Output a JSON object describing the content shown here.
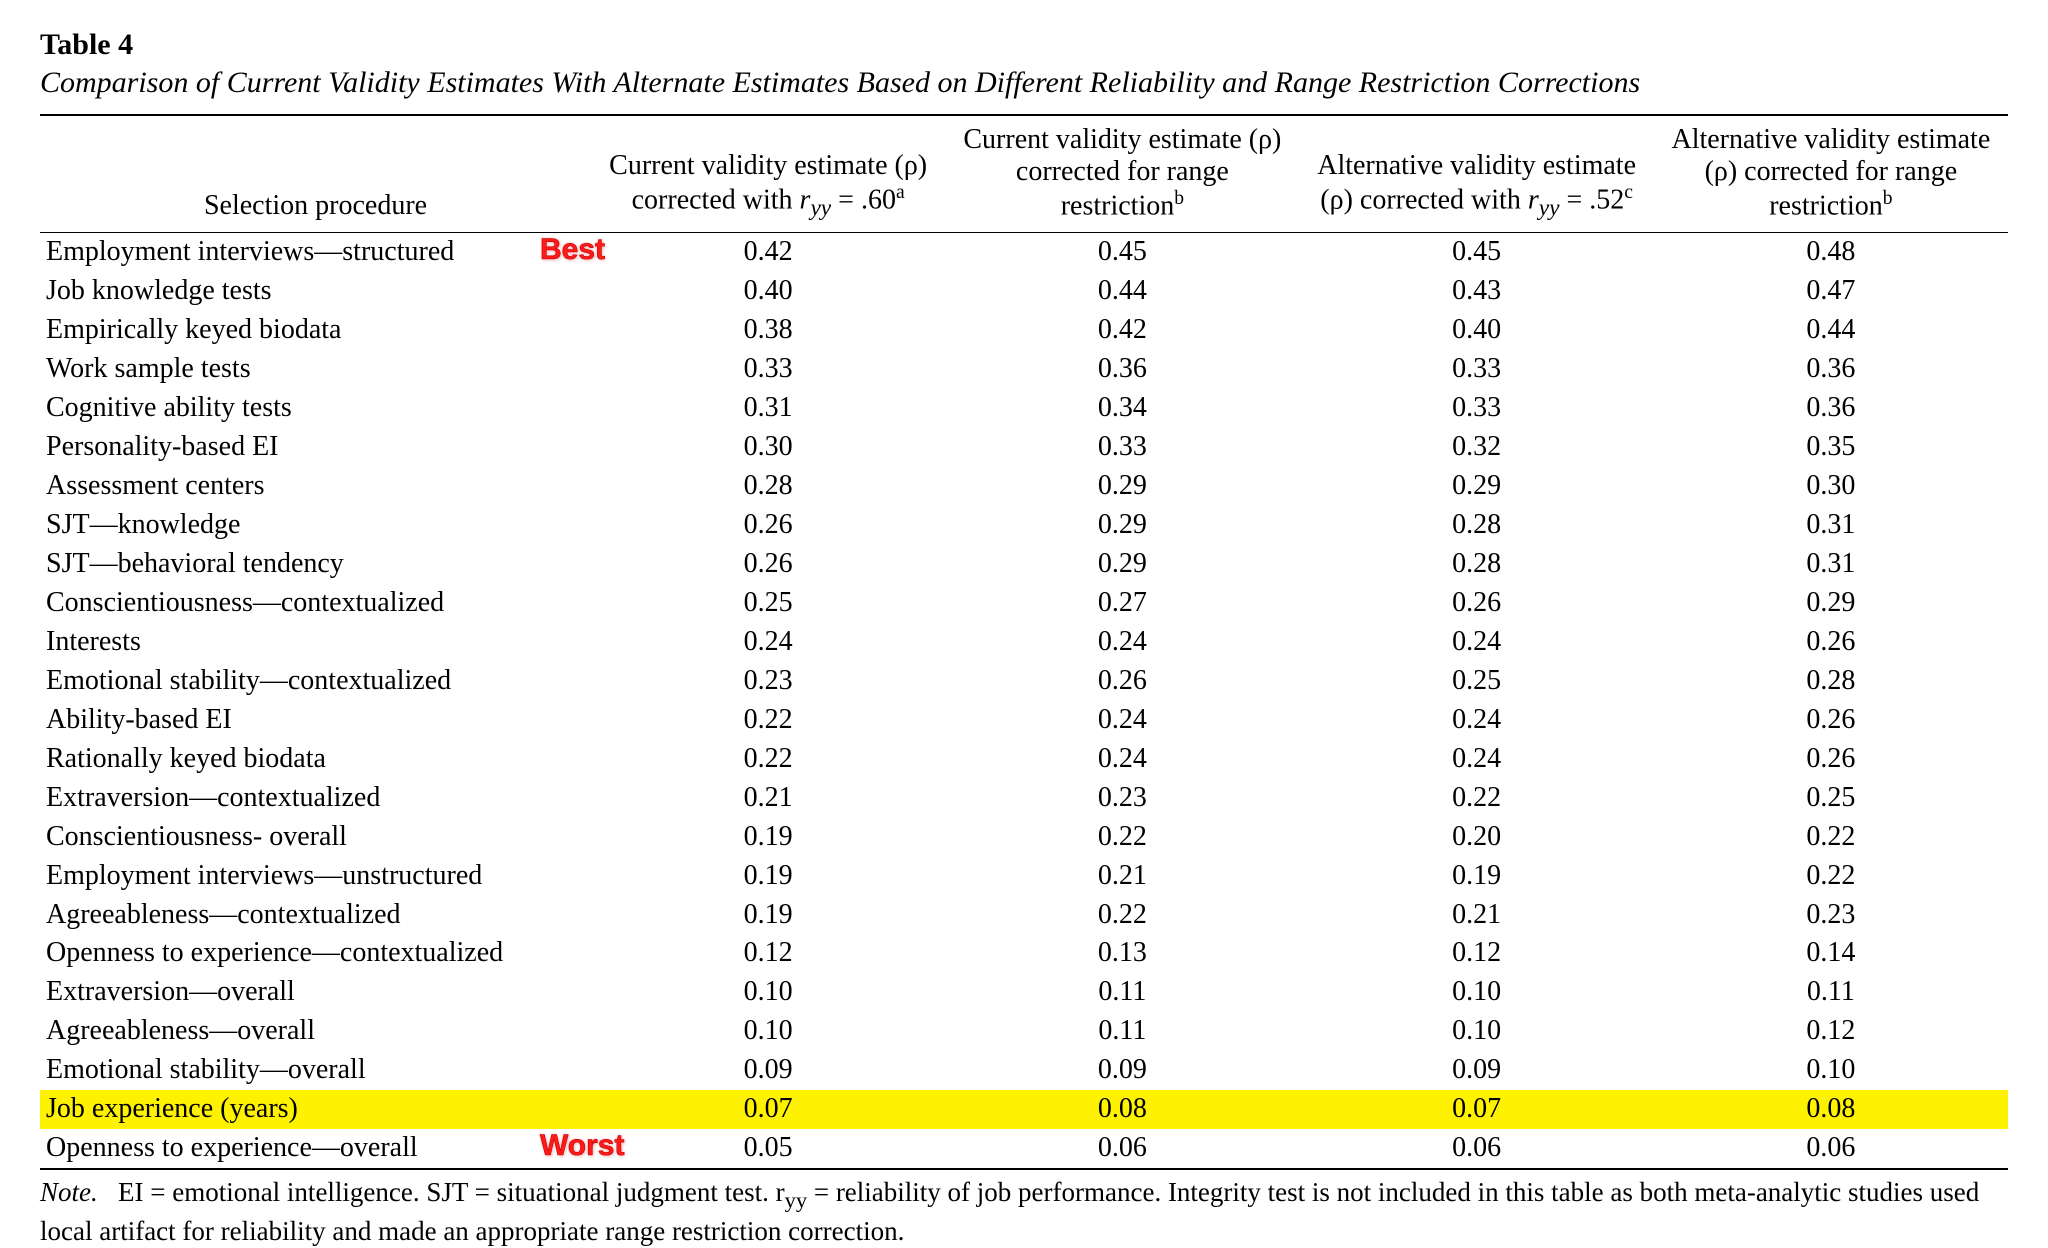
{
  "table": {
    "label": "Table 4",
    "caption": "Comparison of Current Validity Estimates With Alternate Estimates Based on Different Reliability and Range Restriction Corrections",
    "columns": {
      "c0": "Selection procedure",
      "c1_pre": "Current validity estimate (ρ) corrected with ",
      "c1_math": "r",
      "c1_sub": "yy",
      "c1_mid": " = .60",
      "c1_sup": "a",
      "c2_pre": "Current validity estimate (ρ) corrected for range restriction",
      "c2_sup": "b",
      "c3_pre": "Alternative validity estimate (ρ) corrected with ",
      "c3_math": "r",
      "c3_sub": "yy",
      "c3_mid": " = .52",
      "c3_sup": "c",
      "c4_pre": "Alternative validity estimate (ρ) corrected for range restriction",
      "c4_sup": "b"
    },
    "rows": [
      {
        "name": "Employment interviews—structured",
        "v1": "0.42",
        "v2": "0.45",
        "v3": "0.45",
        "v4": "0.48",
        "highlight": false,
        "tag": "Best"
      },
      {
        "name": "Job knowledge tests",
        "v1": "0.40",
        "v2": "0.44",
        "v3": "0.43",
        "v4": "0.47",
        "highlight": false
      },
      {
        "name": "Empirically keyed biodata",
        "v1": "0.38",
        "v2": "0.42",
        "v3": "0.40",
        "v4": "0.44",
        "highlight": false
      },
      {
        "name": "Work sample tests",
        "v1": "0.33",
        "v2": "0.36",
        "v3": "0.33",
        "v4": "0.36",
        "highlight": false
      },
      {
        "name": "Cognitive ability tests",
        "v1": "0.31",
        "v2": "0.34",
        "v3": "0.33",
        "v4": "0.36",
        "highlight": false
      },
      {
        "name": "Personality-based EI",
        "v1": "0.30",
        "v2": "0.33",
        "v3": "0.32",
        "v4": "0.35",
        "highlight": false
      },
      {
        "name": "Assessment centers",
        "v1": "0.28",
        "v2": "0.29",
        "v3": "0.29",
        "v4": "0.30",
        "highlight": false
      },
      {
        "name": "SJT—knowledge",
        "v1": "0.26",
        "v2": "0.29",
        "v3": "0.28",
        "v4": "0.31",
        "highlight": false
      },
      {
        "name": "SJT—behavioral tendency",
        "v1": "0.26",
        "v2": "0.29",
        "v3": "0.28",
        "v4": "0.31",
        "highlight": false
      },
      {
        "name": "Conscientiousness—contextualized",
        "v1": "0.25",
        "v2": "0.27",
        "v3": "0.26",
        "v4": "0.29",
        "highlight": false
      },
      {
        "name": "Interests",
        "v1": "0.24",
        "v2": "0.24",
        "v3": "0.24",
        "v4": "0.26",
        "highlight": false
      },
      {
        "name": "Emotional stability—contextualized",
        "v1": "0.23",
        "v2": "0.26",
        "v3": "0.25",
        "v4": "0.28",
        "highlight": false
      },
      {
        "name": "Ability-based EI",
        "v1": "0.22",
        "v2": "0.24",
        "v3": "0.24",
        "v4": "0.26",
        "highlight": false
      },
      {
        "name": "Rationally keyed biodata",
        "v1": "0.22",
        "v2": "0.24",
        "v3": "0.24",
        "v4": "0.26",
        "highlight": false
      },
      {
        "name": "Extraversion—contextualized",
        "v1": "0.21",
        "v2": "0.23",
        "v3": "0.22",
        "v4": "0.25",
        "highlight": false
      },
      {
        "name": "Conscientiousness- overall",
        "v1": "0.19",
        "v2": "0.22",
        "v3": "0.20",
        "v4": "0.22",
        "highlight": false
      },
      {
        "name": "Employment interviews—unstructured",
        "v1": "0.19",
        "v2": "0.21",
        "v3": "0.19",
        "v4": "0.22",
        "highlight": false
      },
      {
        "name": "Agreeableness—contextualized",
        "v1": "0.19",
        "v2": "0.22",
        "v3": "0.21",
        "v4": "0.23",
        "highlight": false
      },
      {
        "name": "Openness to experience—contextualized",
        "v1": "0.12",
        "v2": "0.13",
        "v3": "0.12",
        "v4": "0.14",
        "highlight": false
      },
      {
        "name": "Extraversion—overall",
        "v1": "0.10",
        "v2": "0.11",
        "v3": "0.10",
        "v4": "0.11",
        "highlight": false
      },
      {
        "name": "Agreeableness—overall",
        "v1": "0.10",
        "v2": "0.11",
        "v3": "0.10",
        "v4": "0.12",
        "highlight": false
      },
      {
        "name": "Emotional stability—overall",
        "v1": "0.09",
        "v2": "0.09",
        "v3": "0.09",
        "v4": "0.10",
        "highlight": false
      },
      {
        "name": "Job experience (years)",
        "v1": "0.07",
        "v2": "0.08",
        "v3": "0.07",
        "v4": "0.08",
        "highlight": true
      },
      {
        "name": "Openness to experience—overall",
        "v1": "0.05",
        "v2": "0.06",
        "v3": "0.06",
        "v4": "0.06",
        "highlight": false,
        "tag": "Worst"
      }
    ],
    "note": {
      "label": "Note.",
      "body_pre": "EI = emotional intelligence. SJT = situational judgment test. r",
      "body_sub": "yy",
      "body_post": " = reliability of job performance. Integrity test is not included in this table as both meta-analytic studies used local artifact for reliability and made an appropriate range restriction correction."
    }
  },
  "style": {
    "highlight_color": "#fff200",
    "tag_color": "#ff1a1a",
    "background": "#ffffff",
    "text_color": "#000000"
  }
}
